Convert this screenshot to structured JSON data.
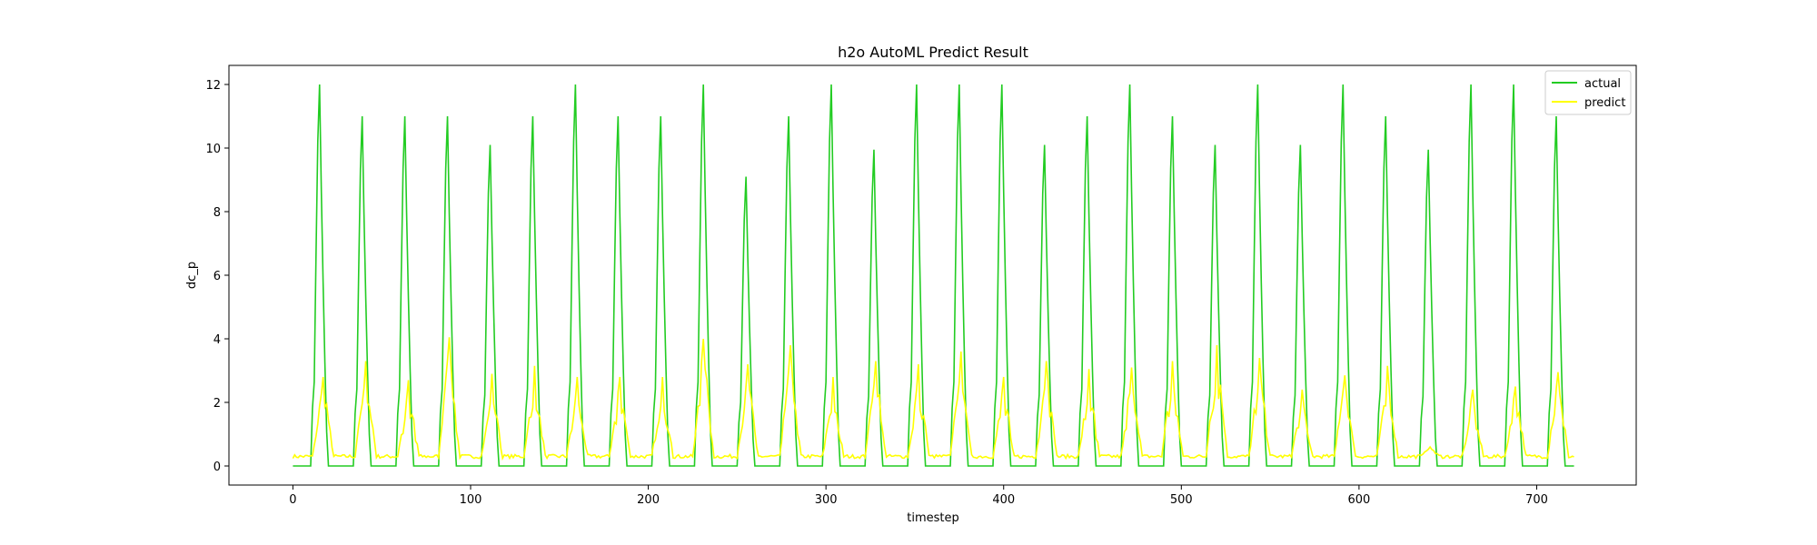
{
  "chart_data": {
    "type": "line",
    "title": "h2o AutoML Predict Result",
    "xlabel": "timestep",
    "ylabel": "dc_p",
    "xlim": [
      -36,
      756
    ],
    "ylim": [
      -0.6,
      12.6
    ],
    "xticks": [
      0,
      100,
      200,
      300,
      400,
      500,
      600,
      700
    ],
    "yticks": [
      0,
      2,
      4,
      6,
      8,
      10,
      12
    ],
    "grid": false,
    "legend_position": "top-right",
    "n_points": 722,
    "series": [
      {
        "name": "actual",
        "color": "#22cc22",
        "peaks": [
          {
            "t": 15,
            "v": 12.0
          },
          {
            "t": 39,
            "v": 11.0
          },
          {
            "t": 63,
            "v": 11.0
          },
          {
            "t": 87,
            "v": 11.0
          },
          {
            "t": 111,
            "v": 10.1
          },
          {
            "t": 135,
            "v": 11.0
          },
          {
            "t": 159,
            "v": 12.0
          },
          {
            "t": 183,
            "v": 11.0
          },
          {
            "t": 207,
            "v": 11.0
          },
          {
            "t": 231,
            "v": 12.0
          },
          {
            "t": 255,
            "v": 9.1
          },
          {
            "t": 279,
            "v": 11.0
          },
          {
            "t": 303,
            "v": 12.0
          },
          {
            "t": 327,
            "v": 9.95
          },
          {
            "t": 351,
            "v": 12.0
          },
          {
            "t": 375,
            "v": 12.0
          },
          {
            "t": 399,
            "v": 12.0
          },
          {
            "t": 423,
            "v": 10.1
          },
          {
            "t": 447,
            "v": 11.0
          },
          {
            "t": 471,
            "v": 12.0
          },
          {
            "t": 495,
            "v": 11.0
          },
          {
            "t": 519,
            "v": 10.1
          },
          {
            "t": 543,
            "v": 12.0
          },
          {
            "t": 567,
            "v": 10.1
          },
          {
            "t": 591,
            "v": 12.0
          },
          {
            "t": 615,
            "v": 11.0
          },
          {
            "t": 639,
            "v": 9.95
          },
          {
            "t": 663,
            "v": 12.0
          },
          {
            "t": 687,
            "v": 12.0
          },
          {
            "t": 711,
            "v": 11.0
          }
        ]
      },
      {
        "name": "predict",
        "color": "#ffff00",
        "baseline": 0.3,
        "peaks": [
          {
            "t": 17,
            "v": 2.8
          },
          {
            "t": 41,
            "v": 3.3
          },
          {
            "t": 65,
            "v": 2.7
          },
          {
            "t": 88,
            "v": 4.05
          },
          {
            "t": 112,
            "v": 2.9
          },
          {
            "t": 136,
            "v": 3.15
          },
          {
            "t": 160,
            "v": 2.8
          },
          {
            "t": 184,
            "v": 2.8
          },
          {
            "t": 208,
            "v": 2.8
          },
          {
            "t": 231,
            "v": 4.0
          },
          {
            "t": 256,
            "v": 3.2
          },
          {
            "t": 280,
            "v": 3.8
          },
          {
            "t": 304,
            "v": 2.8
          },
          {
            "t": 328,
            "v": 3.3
          },
          {
            "t": 352,
            "v": 3.2
          },
          {
            "t": 376,
            "v": 3.6
          },
          {
            "t": 400,
            "v": 2.8
          },
          {
            "t": 424,
            "v": 3.3
          },
          {
            "t": 448,
            "v": 3.05
          },
          {
            "t": 472,
            "v": 3.1
          },
          {
            "t": 495,
            "v": 3.3
          },
          {
            "t": 520,
            "v": 3.8
          },
          {
            "t": 544,
            "v": 3.4
          },
          {
            "t": 568,
            "v": 2.4
          },
          {
            "t": 592,
            "v": 2.85
          },
          {
            "t": 616,
            "v": 3.15
          },
          {
            "t": 640,
            "v": 0.6
          },
          {
            "t": 664,
            "v": 2.4
          },
          {
            "t": 688,
            "v": 2.5
          },
          {
            "t": 712,
            "v": 2.95
          }
        ]
      }
    ]
  }
}
